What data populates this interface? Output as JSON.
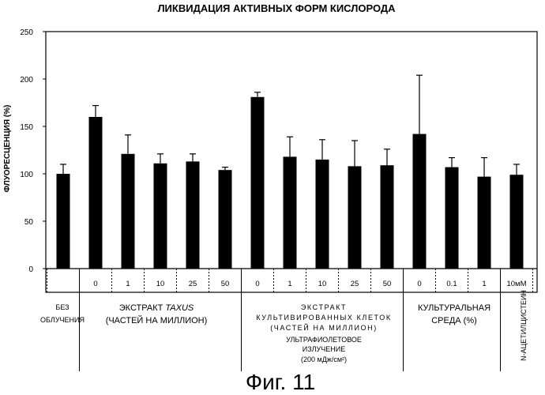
{
  "figure_caption": "Фиг. 11",
  "chart_data": {
    "type": "bar",
    "title": "ЛИКВИДАЦИЯ АКТИВНЫХ ФОРМ КИСЛОРОДА",
    "ylabel": "ФЛУОРЕСЦЕНЦИЯ (%)",
    "ylim": [
      0,
      250
    ],
    "yticks": [
      "0",
      "50",
      "100",
      "150",
      "200",
      "250"
    ],
    "categories": [
      "",
      "0",
      "1",
      "10",
      "25",
      "50",
      "0",
      "1",
      "10",
      "25",
      "50",
      "0",
      "0.1",
      "1",
      "10мМ"
    ],
    "values": [
      100,
      160,
      121,
      111,
      113,
      104,
      181,
      118,
      115,
      108,
      109,
      142,
      107,
      97,
      99
    ],
    "errors": [
      10,
      12,
      20,
      10,
      8,
      3,
      5,
      21,
      21,
      27,
      17,
      62,
      10,
      20,
      11
    ],
    "groups": [
      {
        "lines": [
          "БЕЗ",
          "ОБЛУЧЕНИЯ"
        ]
      },
      {
        "lines": [
          "ЭКСТРАКТ ",
          "(ЧАСТЕЙ НА МИЛЛИОН)"
        ],
        "italic": "TAXUS"
      },
      {
        "lines": [
          "ЭКСТРАКТ",
          "КУЛЬТИВИРОВАННЫХ КЛЕТОК",
          "(ЧАСТЕЙ НА МИЛЛИОН)"
        ]
      },
      {
        "lines": [
          "КУЛЬТУРАЛЬНАЯ",
          "СРЕДА (%)"
        ]
      },
      {
        "lines": [
          "N-АЦЕТИЛЦИСТЕИН"
        ]
      }
    ],
    "uv_note": [
      "УЛЬТРАФИОЛЕТОВОЕ",
      "ИЗЛУЧЕНИЕ",
      "(200 мДж/см²)"
    ],
    "grid": false,
    "legend": "none"
  }
}
